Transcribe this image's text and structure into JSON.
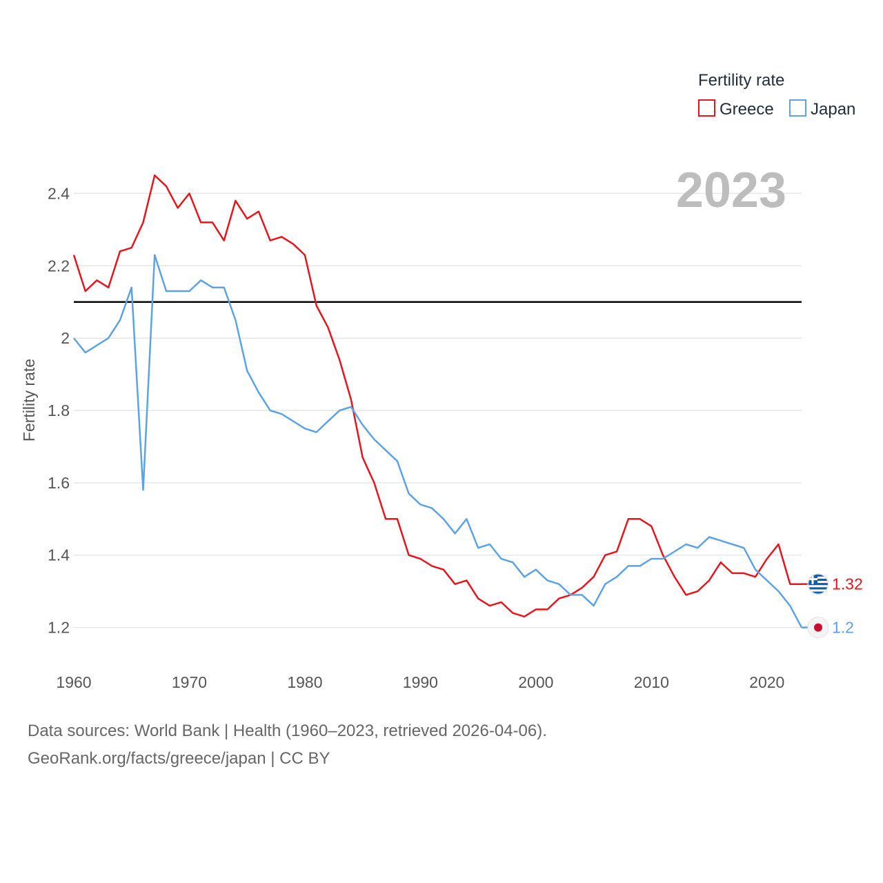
{
  "colors": {
    "greece": "#e8141c",
    "japan": "#5ba3e6",
    "reference_line": "#000000",
    "grid": "#e6e6e6"
  },
  "chart_data": {
    "type": "line",
    "title": "",
    "ylabel": "Fertility rate",
    "xlabel": "",
    "x_start": 1960,
    "x_end": 2023,
    "ylim": [
      1.1,
      2.5
    ],
    "yticks": [
      1.2,
      1.4,
      1.6,
      1.8,
      2,
      2.2,
      2.4
    ],
    "ytick_labels": [
      "1.2",
      "1.4",
      "1.6",
      "1.8",
      "2",
      "2.2",
      "2.4"
    ],
    "xticks": [
      1960,
      1970,
      1980,
      1990,
      2000,
      2010,
      2020
    ],
    "xtick_labels": [
      "1960",
      "1970",
      "1980",
      "1990",
      "2000",
      "2010",
      "2020"
    ],
    "reference_line": {
      "y": 2.1
    },
    "current_year_label": "2023",
    "legend": {
      "title": "Fertility rate",
      "position": "top-right",
      "entries": [
        "Greece",
        "Japan"
      ]
    },
    "series": [
      {
        "name": "Greece",
        "color_key": "greece",
        "flag_icon": "greece-flag-icon",
        "end_label": "1.32",
        "values": [
          2.23,
          2.13,
          2.16,
          2.14,
          2.24,
          2.25,
          2.32,
          2.45,
          2.42,
          2.36,
          2.4,
          2.32,
          2.32,
          2.27,
          2.38,
          2.33,
          2.35,
          2.27,
          2.28,
          2.26,
          2.23,
          2.09,
          2.03,
          1.94,
          1.83,
          1.67,
          1.6,
          1.5,
          1.5,
          1.4,
          1.39,
          1.37,
          1.36,
          1.32,
          1.33,
          1.28,
          1.26,
          1.27,
          1.24,
          1.23,
          1.25,
          1.25,
          1.28,
          1.29,
          1.31,
          1.34,
          1.4,
          1.41,
          1.5,
          1.5,
          1.48,
          1.4,
          1.34,
          1.29,
          1.3,
          1.33,
          1.38,
          1.35,
          1.35,
          1.34,
          1.39,
          1.43,
          1.32,
          1.32
        ]
      },
      {
        "name": "Japan",
        "color_key": "japan",
        "flag_icon": "japan-flag-icon",
        "end_label": "1.2",
        "values": [
          2.0,
          1.96,
          1.98,
          2.0,
          2.05,
          2.14,
          1.58,
          2.23,
          2.13,
          2.13,
          2.13,
          2.16,
          2.14,
          2.14,
          2.05,
          1.91,
          1.85,
          1.8,
          1.79,
          1.77,
          1.75,
          1.74,
          1.77,
          1.8,
          1.81,
          1.76,
          1.72,
          1.69,
          1.66,
          1.57,
          1.54,
          1.53,
          1.5,
          1.46,
          1.5,
          1.42,
          1.43,
          1.39,
          1.38,
          1.34,
          1.36,
          1.33,
          1.32,
          1.29,
          1.29,
          1.26,
          1.32,
          1.34,
          1.37,
          1.37,
          1.39,
          1.39,
          1.41,
          1.43,
          1.42,
          1.45,
          1.44,
          1.43,
          1.42,
          1.36,
          1.33,
          1.3,
          1.26,
          1.2
        ]
      }
    ]
  },
  "footer": {
    "line1": "Data sources: World Bank | Health (1960–2023, retrieved 2026-04-06).",
    "line2": "GeoRank.org/facts/greece/japan | CC BY"
  }
}
